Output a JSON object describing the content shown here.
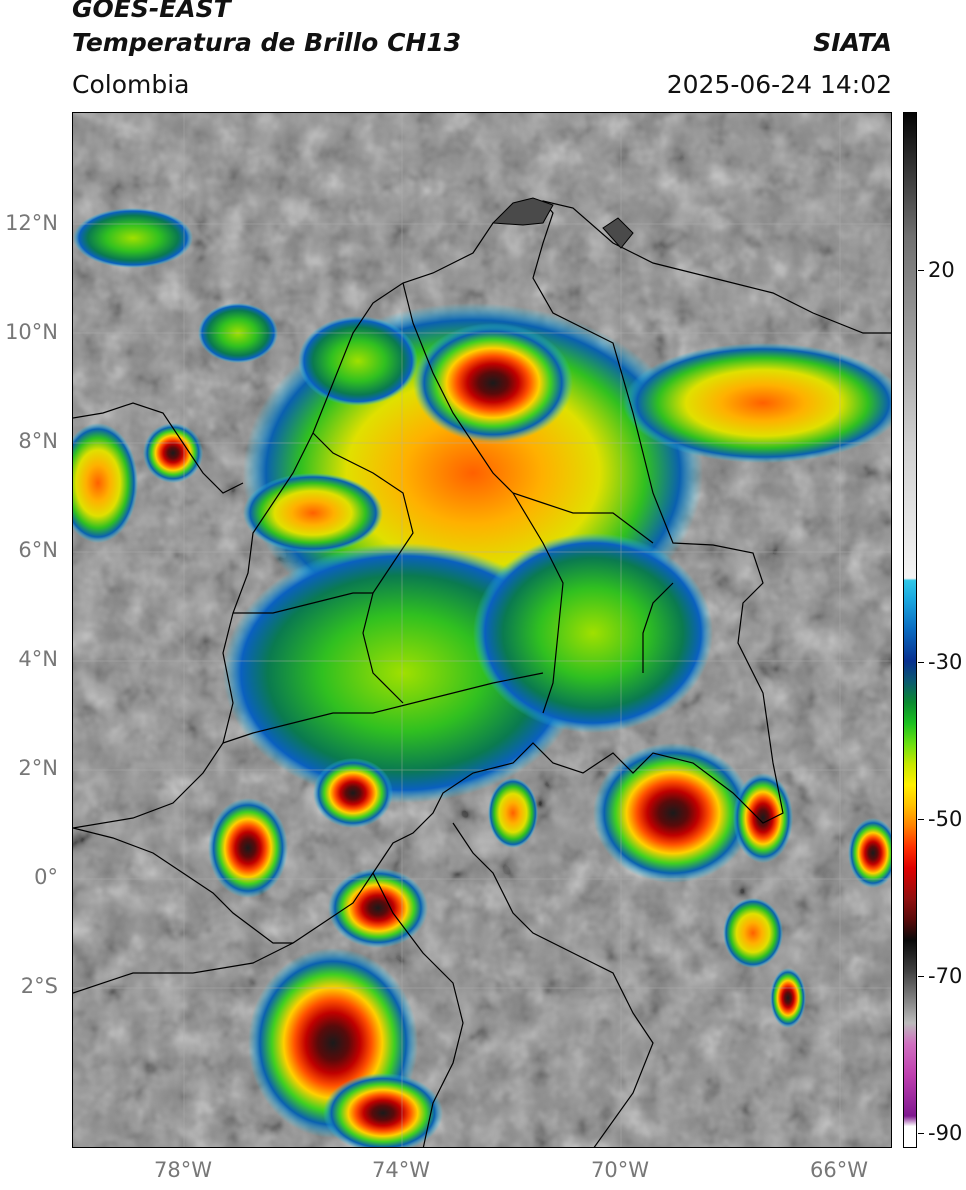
{
  "header": {
    "satellite": "GOES-EAST",
    "product": "Temperatura de Brillo CH13",
    "brand": "SIATA",
    "region": "Colombia",
    "datetime": "2025-06-24 14:02"
  },
  "axes": {
    "lat_labels": [
      "12°N",
      "10°N",
      "8°N",
      "6°N",
      "4°N",
      "2°N",
      "0°",
      "2°S"
    ],
    "lon_labels": [
      "78°W",
      "74°W",
      "70°W",
      "66°W"
    ]
  },
  "colorbar": {
    "tick_labels": [
      "20",
      "-30",
      "-50",
      "-70",
      "-90"
    ]
  }
}
